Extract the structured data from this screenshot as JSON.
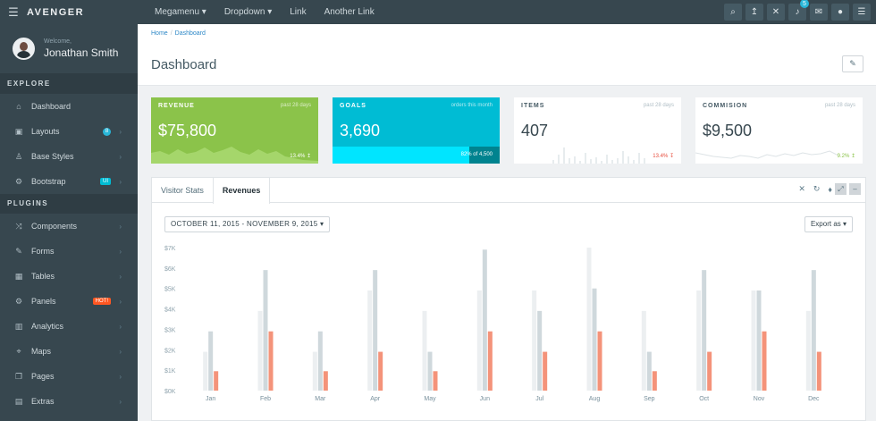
{
  "topbar": {
    "brand": "AVENGER",
    "nav": [
      "Megamenu ▾",
      "Dropdown ▾",
      "Link",
      "Another Link"
    ],
    "icons": [
      "search-icon",
      "arrow-icon",
      "expand-icon",
      "bell-icon",
      "mail-icon",
      "user-icon",
      "menu-icon"
    ],
    "notification_count": "5"
  },
  "sidebar": {
    "welcome": "Welcome,",
    "username": "Jonathan Smith",
    "sections": [
      {
        "title": "EXPLORE",
        "items": [
          {
            "label": "Dashboard",
            "icon": "⌂"
          },
          {
            "label": "Layouts",
            "icon": "▣",
            "badge": "8"
          },
          {
            "label": "Base Styles",
            "icon": "♙"
          },
          {
            "label": "Bootstrap",
            "icon": "⚙",
            "badge": "UI"
          }
        ]
      },
      {
        "title": "PLUGINS",
        "items": [
          {
            "label": "Components",
            "icon": "⤨"
          },
          {
            "label": "Forms",
            "icon": "✎"
          },
          {
            "label": "Tables",
            "icon": "▦"
          },
          {
            "label": "Panels",
            "icon": "⚙",
            "badge": "HOT!"
          },
          {
            "label": "Analytics",
            "icon": "▥"
          },
          {
            "label": "Maps",
            "icon": "⌖"
          },
          {
            "label": "Pages",
            "icon": "❐"
          },
          {
            "label": "Extras",
            "icon": "▤"
          }
        ]
      }
    ]
  },
  "breadcrumb": [
    "Home",
    "Dashboard"
  ],
  "page_title": "Dashboard",
  "tiles": {
    "revenue": {
      "title": "REVENUE",
      "sub": "past 28 days",
      "value": "$75,800",
      "foot": "13.4% ↥"
    },
    "goals": {
      "title": "GOALS",
      "sub": "orders this month",
      "value": "3,690",
      "foot": "82% of 4,500",
      "progress": 0.82
    },
    "items": {
      "title": "ITEMS",
      "sub": "past 28 days",
      "value": "407",
      "foot": "13.4% ↧"
    },
    "commission": {
      "title": "COMMISION",
      "sub": "past 28 days",
      "value": "$9,500",
      "foot": "9.2% ↥"
    }
  },
  "panel": {
    "tabs": [
      "Visitor Stats",
      "Revenues"
    ],
    "active_tab": "Revenues",
    "date_range": "OCTOBER 11, 2015 - NOVEMBER 9, 2015 ▾",
    "export": "Export as ▾"
  },
  "colors": {
    "sidebar": "#37474f",
    "revenue": "#8bc34a",
    "goals": "#00bcd4",
    "bar_light": "#eceff1",
    "bar_mid": "#cfd8dc",
    "bar_accent": "#f4937a"
  },
  "chart_data": {
    "type": "bar",
    "categories": [
      "Jan",
      "Feb",
      "Mar",
      "Apr",
      "May",
      "Jun",
      "Jul",
      "Aug",
      "Sep",
      "Oct",
      "Nov",
      "Dec"
    ],
    "y_ticks": [
      "$0K",
      "$1K",
      "$2K",
      "$3K",
      "$4K",
      "$5K",
      "$6K",
      "$7K"
    ],
    "ylim": [
      0,
      7
    ],
    "series": [
      {
        "values": [
          1.9,
          3.9,
          1.9,
          4.9,
          3.9,
          4.9,
          4.9,
          7.0,
          3.9,
          4.9,
          4.9,
          3.9
        ]
      },
      {
        "values": [
          2.9,
          5.9,
          2.9,
          5.9,
          1.9,
          6.9,
          3.9,
          5.0,
          1.9,
          5.9,
          4.9,
          5.9
        ]
      },
      {
        "values": [
          0.95,
          2.9,
          0.95,
          1.9,
          0.95,
          2.9,
          1.9,
          2.9,
          0.95,
          1.9,
          2.9,
          1.9
        ]
      }
    ]
  }
}
